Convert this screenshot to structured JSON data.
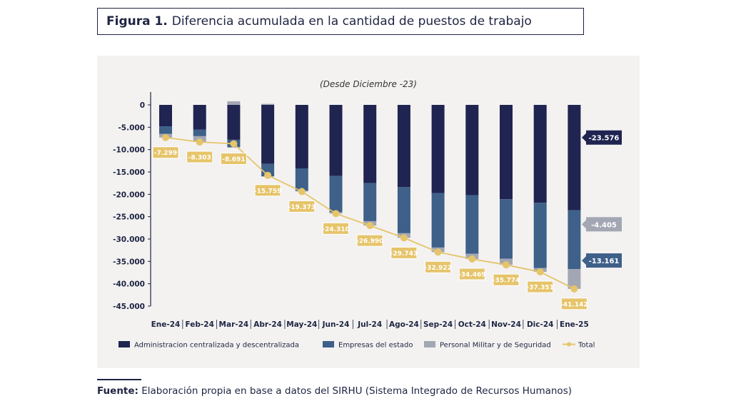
{
  "figure": {
    "label": "Figura 1.",
    "title": "Diferencia acumulada en la cantidad de puestos de trabajo"
  },
  "source": {
    "label": "Fuente:",
    "text": "Elaboración propia en base a datos del SIRHU (Sistema Integrado de Recursos Humanos)"
  },
  "colors": {
    "admin": "#1f2450",
    "empresas": "#3e6089",
    "militar": "#a3a7b3",
    "total": "#e6c46a",
    "panel": "#f3f2f1"
  },
  "chart_data": {
    "type": "bar",
    "stacked": true,
    "subtitle": "(Desde Diciembre -23)",
    "categories": [
      "Ene-24",
      "Feb-24",
      "Mar-24",
      "Abr-24",
      "May-24",
      "Jun-24",
      "Jul-24",
      "Ago-24",
      "Sep-24",
      "Oct-24",
      "Nov-24",
      "Dic-24",
      "Ene-25"
    ],
    "ylim": [
      -45000,
      0
    ],
    "yticks": [
      0,
      -5000,
      -10000,
      -15000,
      -20000,
      -25000,
      -30000,
      -35000,
      -40000,
      -45000
    ],
    "ytick_labels": [
      "0",
      "-5.000",
      "-10.000",
      "-15.000",
      "-20.000",
      "-25.000",
      "-30.000",
      "-35.000",
      "-40.000",
      "-45.000"
    ],
    "series": [
      {
        "name": "Administracion centralizada y descentralizada",
        "values": [
          -4800,
          -5500,
          -7800,
          -13200,
          -14200,
          -15900,
          -17500,
          -18400,
          -19700,
          -20200,
          -21100,
          -21900,
          -23576
        ]
      },
      {
        "name": "Empresas del estado",
        "values": [
          -1700,
          -1500,
          -1700,
          -2800,
          -5000,
          -8100,
          -8500,
          -10300,
          -12200,
          -13100,
          -13300,
          -14600,
          -13161
        ]
      },
      {
        "name": "Personal Militar y de Seguridad",
        "values": [
          -799,
          -1303,
          809,
          241,
          -173,
          -310,
          -990,
          -1043,
          -1022,
          -1169,
          -1374,
          -851,
          -4405
        ]
      },
      {
        "name": "Total",
        "type": "line",
        "values": [
          -7299,
          -8303,
          -8691,
          -15759,
          -19373,
          -24310,
          -26990,
          -29743,
          -32922,
          -34469,
          -35774,
          -37351,
          -41142
        ]
      }
    ],
    "point_labels": [
      "-7.299",
      "-8.303",
      "-8.691",
      "-15.759",
      "-19.373",
      "-24.310",
      "-26.990",
      "-29.743",
      "-32.922",
      "-34.469",
      "-35.774",
      "-37.351",
      "-41.142"
    ],
    "end_labels": [
      "-23.576",
      "-4.405",
      "-13.161"
    ],
    "legend_position": "bottom"
  }
}
